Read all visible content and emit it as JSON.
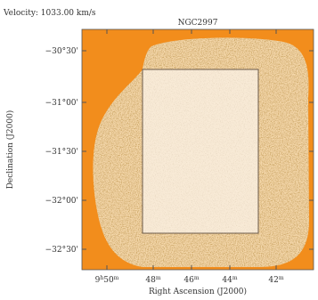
{
  "header": {
    "velocity": "Velocity: 1033.00 km/s",
    "title": "NGC2997"
  },
  "axes": {
    "x_label": "Right Ascension (J2000)",
    "y_label": "Declination (J2000)",
    "x_ticks": [
      [
        "9",
        "h",
        "50",
        "m"
      ],
      [
        "48",
        "m"
      ],
      [
        "46",
        "m"
      ],
      [
        "44",
        "m"
      ],
      [
        "42",
        "m"
      ]
    ],
    "y_ticks": [
      "−30°30'",
      "−31°00'",
      "−31°30'",
      "−32°00'",
      "−32°30'"
    ]
  }
}
